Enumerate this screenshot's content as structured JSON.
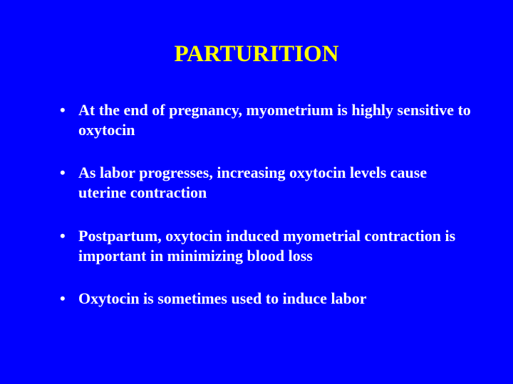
{
  "background_color": "#0000ff",
  "title": {
    "text": "PARTURITION",
    "color": "#ffff00",
    "fontsize": 33,
    "font_family": "Times New Roman",
    "font_weight": "bold",
    "align": "center"
  },
  "bullets": {
    "color": "#ffffff",
    "fontsize": 22,
    "font_family": "Times New Roman",
    "font_weight": "bold",
    "marker": "•",
    "items": [
      "At the end of pregnancy, myometrium is highly sensitive to oxytocin",
      "As labor progresses, increasing oxytocin levels cause uterine contraction",
      "Postpartum, oxytocin induced myometrial contraction is important in minimizing blood loss",
      "Oxytocin is sometimes used to induce labor"
    ]
  }
}
